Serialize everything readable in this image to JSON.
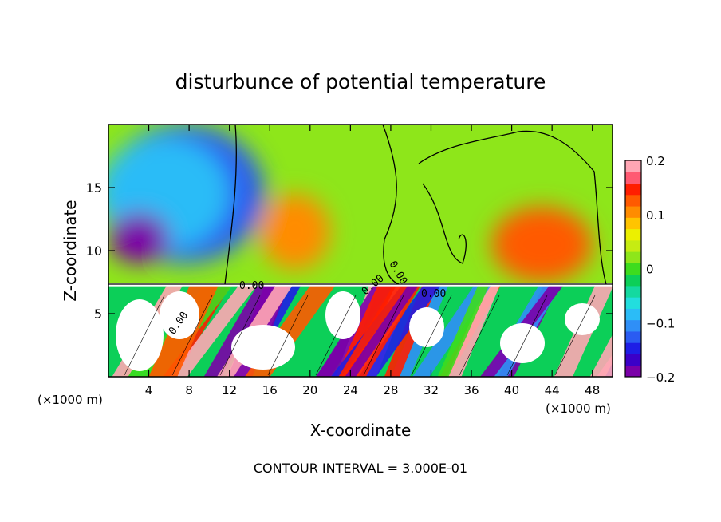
{
  "chart_data": {
    "type": "heatmap",
    "title": "disturbunce of potential temperature",
    "xlabel": "X-coordinate",
    "ylabel": "Z-coordinate",
    "x_unit_left": "(×1000 m)",
    "x_unit_right": "(×1000 m)",
    "footer": "CONTOUR INTERVAL = 3.000E-01",
    "xlim": [
      0,
      50
    ],
    "ylim": [
      0,
      20
    ],
    "x_ticks": [
      {
        "value": 4,
        "label": "4"
      },
      {
        "value": 8,
        "label": "8"
      },
      {
        "value": 12,
        "label": "12"
      },
      {
        "value": 16,
        "label": "16"
      },
      {
        "value": 20,
        "label": "20"
      },
      {
        "value": 24,
        "label": "24"
      },
      {
        "value": 28,
        "label": "28"
      },
      {
        "value": 32,
        "label": "32"
      },
      {
        "value": 36,
        "label": "36"
      },
      {
        "value": 40,
        "label": "40"
      },
      {
        "value": 44,
        "label": "44"
      },
      {
        "value": 48,
        "label": "48"
      }
    ],
    "y_ticks": [
      {
        "value": 5,
        "label": "5"
      },
      {
        "value": 10,
        "label": "10"
      },
      {
        "value": 15,
        "label": "15"
      }
    ],
    "colorbar": {
      "range": [
        -0.2,
        0.2
      ],
      "ticks": [
        {
          "value": 0.2,
          "label": "0.2"
        },
        {
          "value": 0.1,
          "label": "0.1"
        },
        {
          "value": 0,
          "label": "0"
        },
        {
          "value": -0.1,
          "label": "−0.1"
        },
        {
          "value": -0.2,
          "label": "−0.2"
        }
      ],
      "colors": [
        "#7a00a8",
        "#3b00c8",
        "#1e1ee6",
        "#2a5cf2",
        "#2f8ff7",
        "#2bbcf7",
        "#22dede",
        "#14d9a0",
        "#0ccf58",
        "#3ddc1e",
        "#8ee61a",
        "#c6ec12",
        "#ecf000",
        "#ffc400",
        "#ff8c00",
        "#ff5a00",
        "#ff1e00",
        "#ff5a72",
        "#ffa6b4"
      ]
    },
    "contour_labels": [
      "0.00",
      "0.00",
      "0.00",
      "0.00",
      "0.00"
    ],
    "field_regions": [
      {
        "value": -0.12,
        "cx": 7.5,
        "cz": 14.5,
        "rx": 8,
        "rz": 5.5
      },
      {
        "value": -0.08,
        "cx": 5.5,
        "cz": 14.5,
        "rx": 6.5,
        "rz": 4.5
      },
      {
        "value": -0.18,
        "cx": 3.0,
        "cz": 11.0,
        "rx": 3.0,
        "rz": 2.0
      },
      {
        "value": 0.1,
        "cx": 18.5,
        "cz": 11.5,
        "rx": 3.5,
        "rz": 3.0
      },
      {
        "value": 0.13,
        "cx": 43.0,
        "cz": 10.5,
        "rx": 5.0,
        "rz": 3.0
      }
    ]
  }
}
